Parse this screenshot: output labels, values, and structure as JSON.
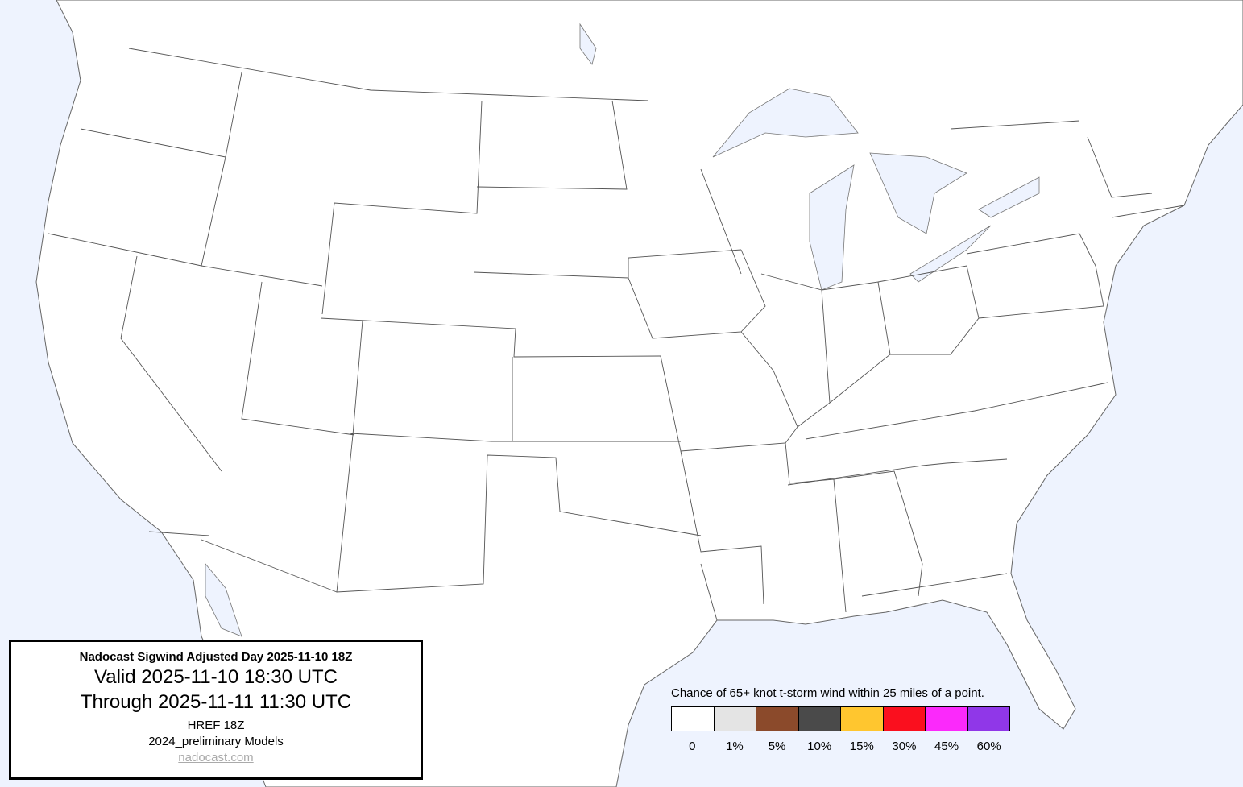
{
  "colors": {
    "ocean": "#eef3fe",
    "land": "#ffffff",
    "border": "#555555"
  },
  "info_box": {
    "title": "Nadocast Sigwind Adjusted Day 2025-11-10 18Z",
    "valid": "Valid 2025-11-10 18:30 UTC",
    "through": "Through 2025-11-11 11:30 UTC",
    "model": "HREF 18Z",
    "models_version": "2024_preliminary Models",
    "link": "nadocast.com"
  },
  "legend": {
    "title": "Chance of 65+ knot t-storm wind within 25 miles of a point.",
    "items": [
      {
        "label": "0",
        "color": "#ffffff"
      },
      {
        "label": "1%",
        "color": "#e4e4e4"
      },
      {
        "label": "5%",
        "color": "#8b4a2b"
      },
      {
        "label": "10%",
        "color": "#4a4a4a"
      },
      {
        "label": "15%",
        "color": "#ffc62f"
      },
      {
        "label": "30%",
        "color": "#fa0f1e"
      },
      {
        "label": "45%",
        "color": "#fb29fb"
      },
      {
        "label": "60%",
        "color": "#9037e8"
      }
    ]
  }
}
